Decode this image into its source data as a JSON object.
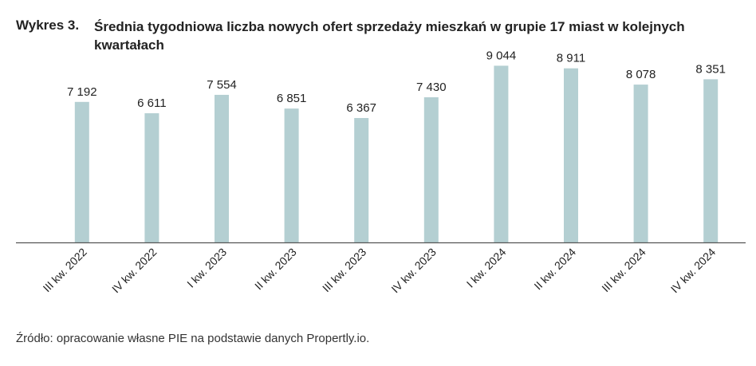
{
  "header": {
    "prefix": "Wykres 3.",
    "title": "Średnia tygodniowa liczba nowych ofert sprzedaży mieszkań w grupie 17 miast w kolejnych kwartałach"
  },
  "chart_data": {
    "type": "bar",
    "categories": [
      "III kw. 2022",
      "IV kw. 2022",
      "I kw. 2023",
      "II kw. 2023",
      "III kw. 2023",
      "IV kw. 2023",
      "I kw. 2024",
      "II kw. 2024",
      "III kw. 2024",
      "IV kw. 2024"
    ],
    "values": [
      7192,
      6611,
      7554,
      6851,
      6367,
      7430,
      9044,
      8911,
      8078,
      8351
    ],
    "labels": [
      "7 192",
      "6 611",
      "7 554",
      "6 851",
      "6 367",
      "7 430",
      "9 044",
      "8 911",
      "8 078",
      "8 351"
    ],
    "ylim": [
      0,
      10000
    ],
    "bar_color": "#b4cfd2",
    "axis_color": "#555555",
    "grid": false,
    "legend": "none"
  },
  "footer": {
    "source": "Źródło: opracowanie własne PIE na podstawie danych Propertly.io."
  }
}
